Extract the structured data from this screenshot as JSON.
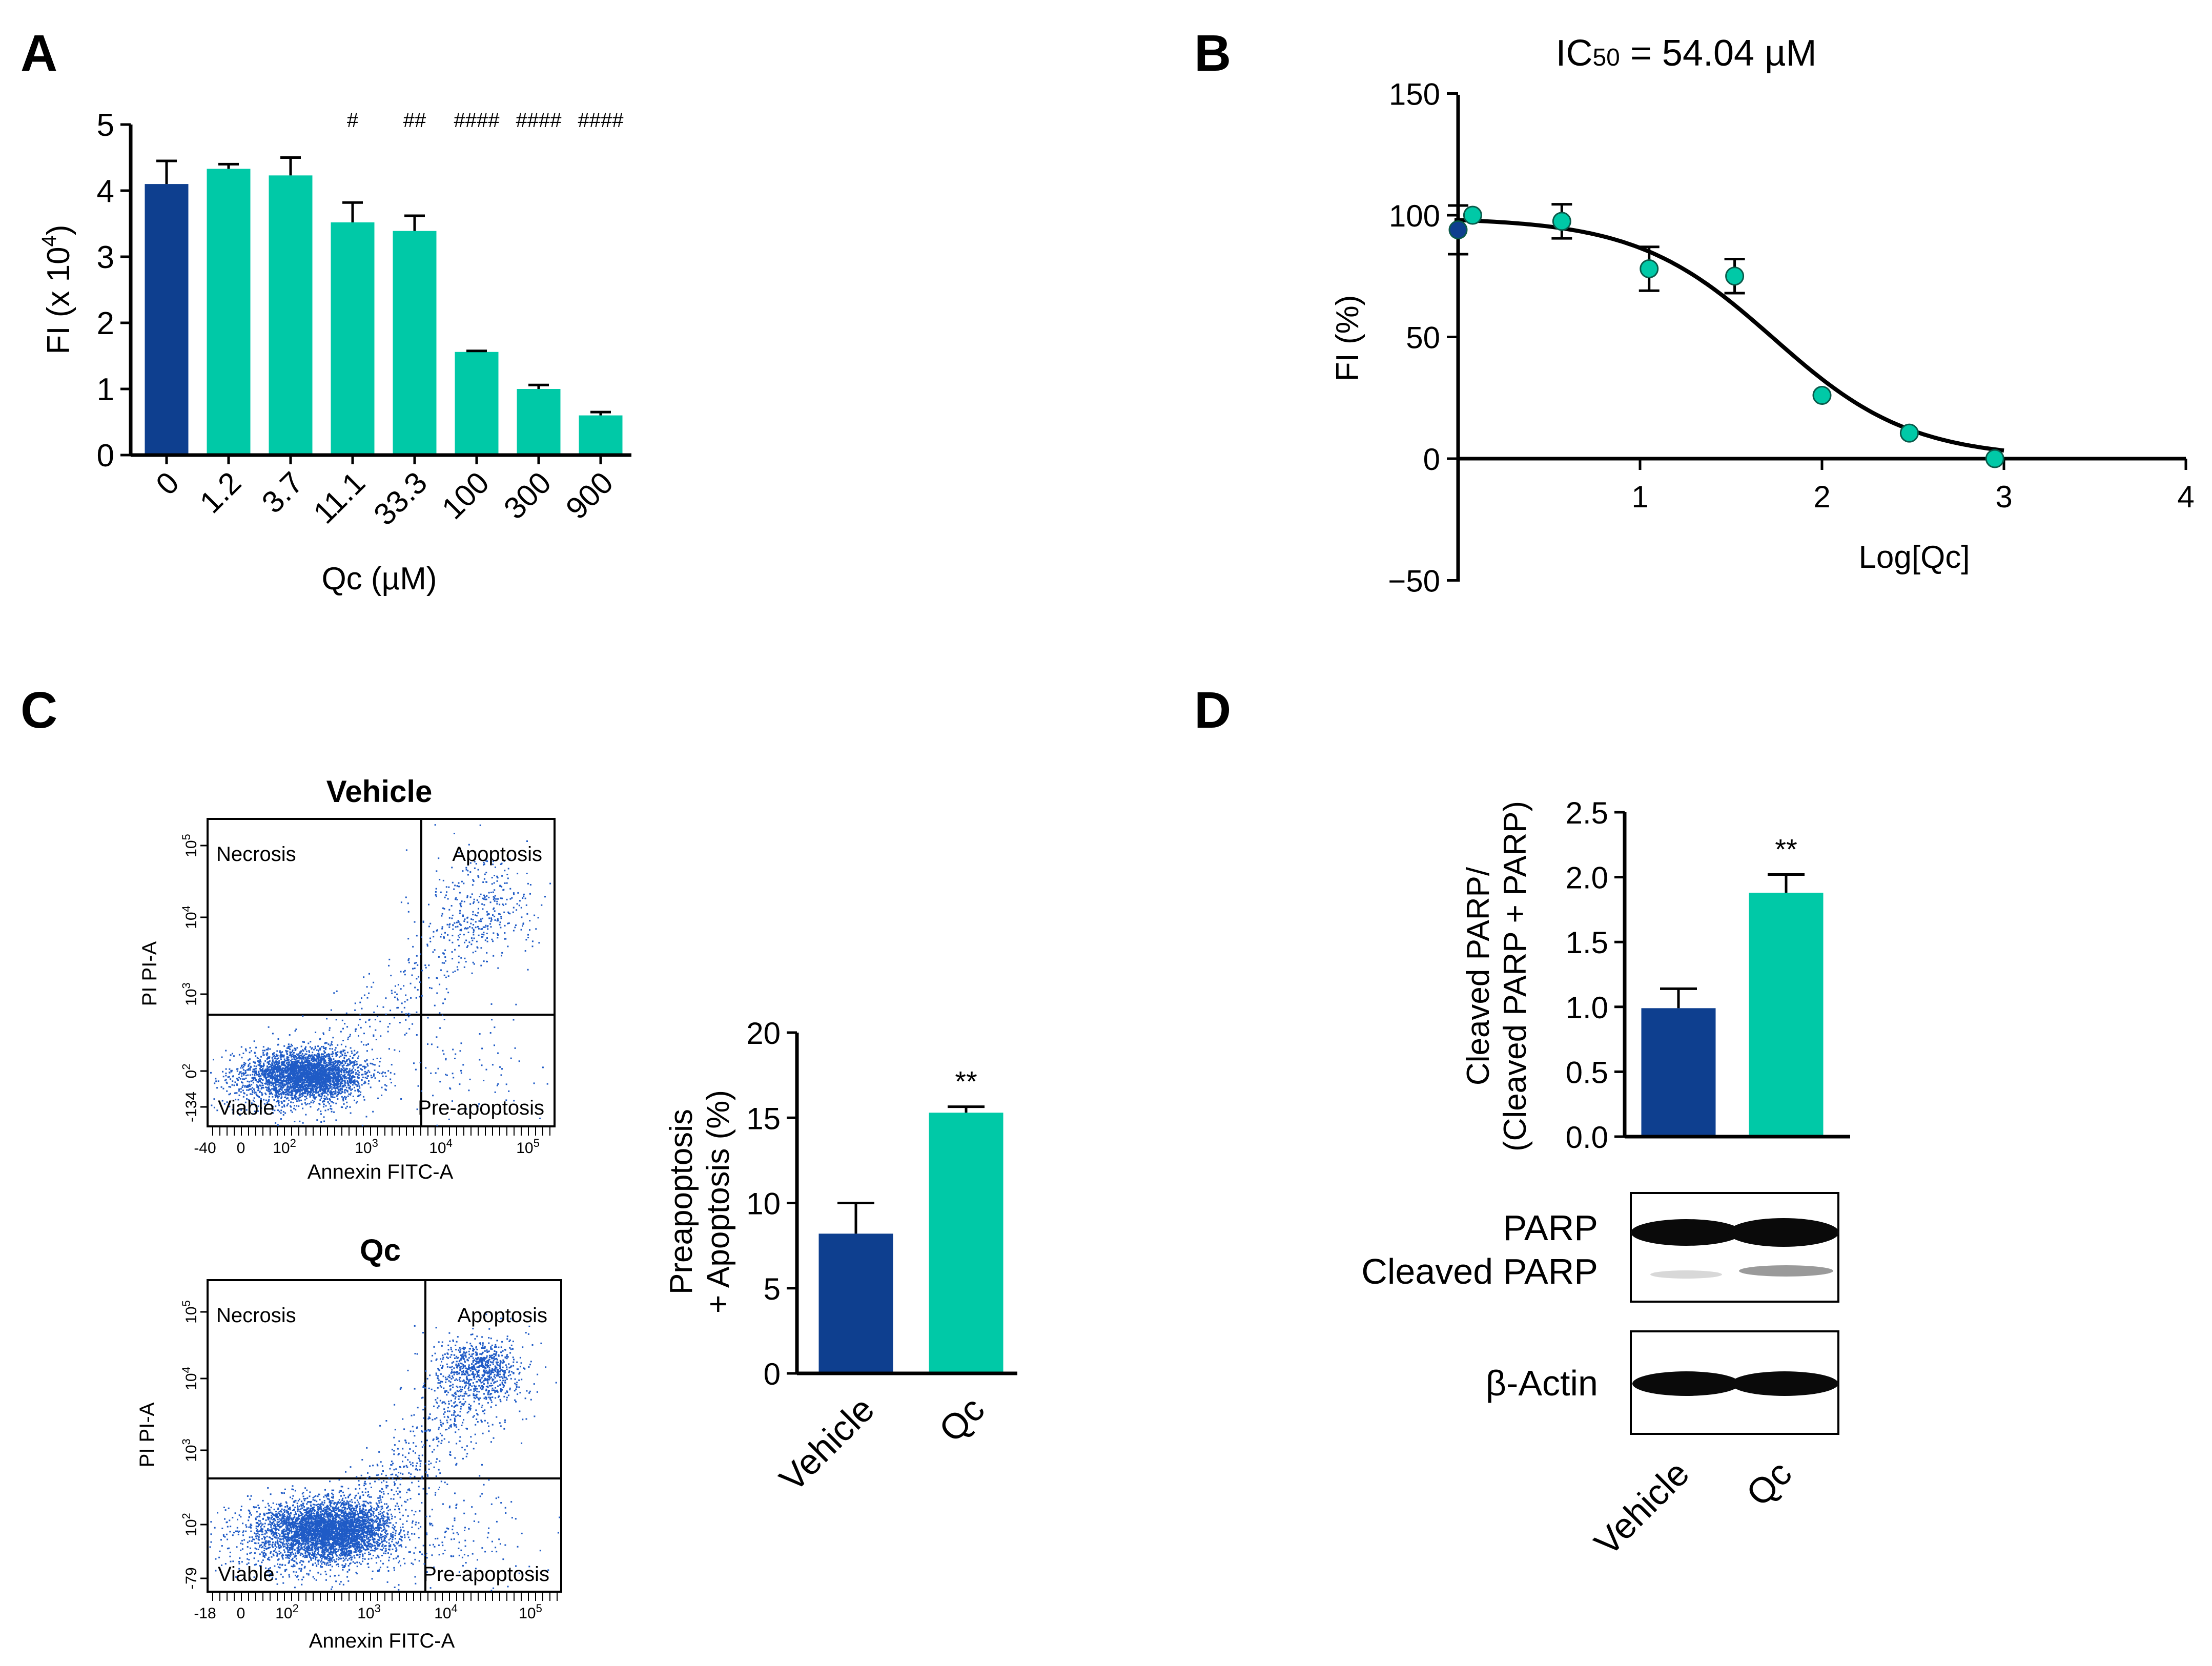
{
  "colors": {
    "vehicle": "#0E3F8F",
    "treatment": "#00C9A7",
    "axis": "#000000",
    "dots": "#1F5BC6"
  },
  "panels": {
    "A": {
      "letter": "A"
    },
    "B": {
      "letter": "B",
      "title_main": "IC",
      "title_sub": "50",
      "title_rest": " = 54.04 µM"
    },
    "C": {
      "letter": "C"
    },
    "D": {
      "letter": "D"
    }
  },
  "chart_data": [
    {
      "id": "A",
      "type": "bar",
      "title": "",
      "xlabel": "Qc (µM)",
      "ylabel": "FI (x 10",
      "ylabel_sup": "4",
      "ylabel_end": ")",
      "ylim": [
        0,
        5
      ],
      "yticks": [
        0,
        1,
        2,
        3,
        4,
        5
      ],
      "categories": [
        "0",
        "1.2",
        "3.7",
        "11.1",
        "33.3",
        "100",
        "300",
        "900"
      ],
      "values": [
        4.1,
        4.33,
        4.23,
        3.52,
        3.39,
        1.56,
        1.0,
        0.6
      ],
      "errors": [
        0.35,
        0.07,
        0.27,
        0.3,
        0.23,
        0.0,
        0.06,
        0.05
      ],
      "annotations": [
        "",
        "",
        "",
        "#",
        "##",
        "####",
        "####",
        "####"
      ]
    },
    {
      "id": "B",
      "type": "scatter",
      "title": "IC50 = 54.04 µM",
      "xlabel": "Log[Qc]",
      "ylabel": "FI (%)",
      "xlim": [
        0,
        4
      ],
      "ylim": [
        -50,
        150
      ],
      "xticks": [
        1,
        2,
        3,
        4
      ],
      "yticks": [
        -50,
        0,
        50,
        100,
        150
      ],
      "ytick_labels": [
        "−50",
        "0",
        "50",
        "100",
        "150"
      ],
      "points": [
        {
          "x": 0.0,
          "y": 94,
          "err": 10,
          "group": "vehicle"
        },
        {
          "x": 0.08,
          "y": 100,
          "err": 1,
          "group": "treatment"
        },
        {
          "x": 0.57,
          "y": 97.5,
          "err": 7,
          "group": "treatment"
        },
        {
          "x": 1.05,
          "y": 78,
          "err": 9,
          "group": "treatment"
        },
        {
          "x": 1.52,
          "y": 75,
          "err": 7,
          "group": "treatment"
        },
        {
          "x": 2.0,
          "y": 26,
          "err": 1,
          "group": "treatment"
        },
        {
          "x": 2.48,
          "y": 10.5,
          "err": 1,
          "group": "treatment"
        },
        {
          "x": 2.95,
          "y": 0,
          "err": 1,
          "group": "treatment"
        }
      ],
      "fit": {
        "top": 99,
        "bottom": 0,
        "log_ic50": 1.7327,
        "hill": -1.15
      }
    },
    {
      "id": "C-bars",
      "type": "bar",
      "ylabel_line1": "Preapoptosis",
      "ylabel_line2": "+ Apoptosis (%)",
      "ylim": [
        0,
        20
      ],
      "yticks": [
        0,
        5,
        10,
        15,
        20
      ],
      "categories": [
        "Vehicle",
        "Qc"
      ],
      "values": [
        8.2,
        15.3
      ],
      "errors": [
        1.8,
        0.35
      ],
      "significance": [
        "",
        "**"
      ]
    },
    {
      "id": "D-bars",
      "type": "bar",
      "ylabel_line1": "Cleaved PARP/",
      "ylabel_line2": "(Cleaved PARP + PARP)",
      "ylim": [
        0,
        2.5
      ],
      "yticks": [
        0.0,
        0.5,
        1.0,
        1.5,
        2.0,
        2.5
      ],
      "ytick_labels": [
        "0.0",
        "0.5",
        "1.0",
        "1.5",
        "2.0",
        "2.5"
      ],
      "categories": [
        "Vehicle",
        "Qc"
      ],
      "values": [
        0.99,
        1.88
      ],
      "errors": [
        0.15,
        0.14
      ],
      "significance": [
        "",
        "**"
      ]
    }
  ],
  "flow": {
    "vehicle": {
      "title": "Vehicle",
      "q_tl": "Necrosis",
      "q_tr": "Apoptosis",
      "q_bl": "Viable",
      "q_br": "Pre-apoptosis",
      "xlabel": "Annexin FITC-A",
      "ylabel": "PI PI-A",
      "y_ticks": [
        "10",
        "10",
        "10",
        "0",
        "-134"
      ],
      "y_exps": [
        "5",
        "4",
        "3",
        "2",
        ""
      ],
      "x_ticks": [
        "-40",
        "0",
        "10",
        "10",
        "10",
        "10"
      ],
      "x_exps": [
        "",
        "",
        "2",
        "3",
        "4",
        "5"
      ]
    },
    "qc": {
      "title": "Qc",
      "q_tl": "Necrosis",
      "q_tr": "Apoptosis",
      "q_bl": "Viable",
      "q_br": "Pre-apoptosis",
      "xlabel": "Annexin FITC-A",
      "ylabel": "PI PI-A",
      "y_ticks": [
        "10",
        "10",
        "10",
        "10",
        "-79"
      ],
      "y_exps": [
        "5",
        "4",
        "3",
        "2",
        ""
      ],
      "x_ticks": [
        "-18",
        "0",
        "10",
        "10",
        "10",
        "10"
      ],
      "x_exps": [
        "",
        "",
        "2",
        "3",
        "4",
        "5"
      ]
    }
  },
  "western": {
    "label_parp": "PARP",
    "label_cleaved": "Cleaved PARP",
    "label_actin": "β-Actin",
    "lanes": [
      "Vehicle",
      "Qc"
    ]
  }
}
